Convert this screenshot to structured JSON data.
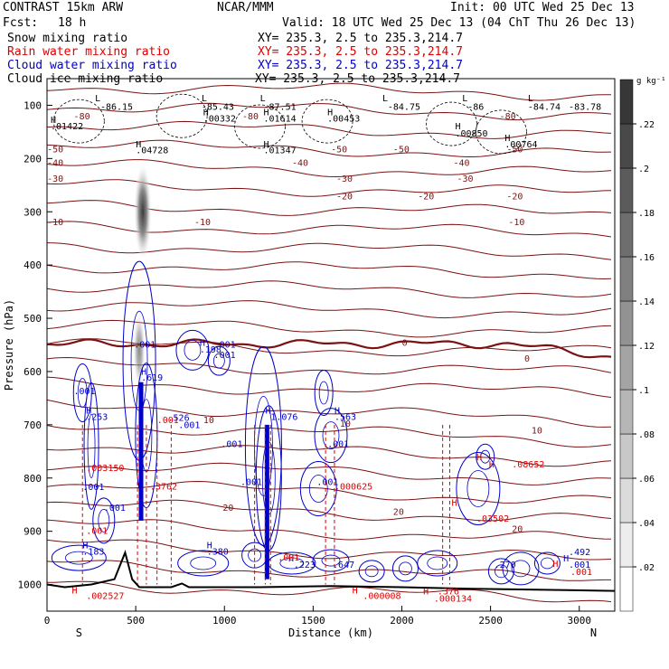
{
  "header": {
    "model": "CONTRAST 15km ARW",
    "org": "NCAR/MMM",
    "init": "Init: 00 UTC Wed 25 Dec 13",
    "fcst_label": "Fcst:",
    "fcst_value": "18 h",
    "valid": "Valid: 18 UTC Wed 25 Dec 13 (04 ChT Thu 26 Dec 13)",
    "colors": {
      "black": "#000000",
      "red": "#dd0000",
      "blue": "#0000cc",
      "brown": "#7b1212"
    },
    "fields": [
      {
        "name": "Snow mixing ratio",
        "xy": "XY= 235.3,  2.5 to 235.3,214.7",
        "color": "#000000"
      },
      {
        "name": "Rain water mixing ratio",
        "xy": "XY= 235.3,  2.5 to 235.3,214.7",
        "color": "#dd0000"
      },
      {
        "name": "Cloud water mixing ratio",
        "xy": "XY= 235.3,  2.5 to 235.3,214.7",
        "color": "#0000cc"
      },
      {
        "name": "Cloud ice mixing ratio",
        "xy": "XY= 235.3,  2.5 to 235.3,214.7",
        "color": "#000000"
      }
    ]
  },
  "chart_data": {
    "type": "cross-section",
    "xlabel": "Distance (km)",
    "ylabel": "Pressure (hPa)",
    "xlim": [
      0,
      3200
    ],
    "ylim": [
      1050,
      50
    ],
    "x_ticks": [
      0,
      500,
      1000,
      1500,
      2000,
      2500,
      3000
    ],
    "y_ticks": [
      100,
      200,
      300,
      400,
      500,
      600,
      700,
      800,
      900,
      1000
    ],
    "endpoint_labels": {
      "left": "S",
      "right": "N"
    },
    "colorbar": {
      "unit": "g kg⁻¹",
      "ticks": [
        ".02",
        ".04",
        ".06",
        ".08",
        ".1",
        ".12",
        ".14",
        ".16",
        ".18",
        ".2",
        ".22"
      ],
      "range": [
        0,
        0.24
      ]
    },
    "temperature_contours": [
      {
        "label": "-80",
        "p": 120
      },
      {
        "label": "-50",
        "p": 183
      },
      {
        "label": "-40",
        "p": 208
      },
      {
        "label": "-30",
        "p": 238
      },
      {
        "label": "-20",
        "p": 270
      },
      {
        "label": "-10",
        "p": 318
      },
      {
        "label": "0",
        "p": 548
      },
      {
        "label": "10",
        "p": 690
      },
      {
        "label": "20",
        "p": 840
      }
    ],
    "temperature_label_positions": [
      {
        "label": "-80",
        "x": 120,
        "p": 120
      },
      {
        "label": "-80",
        "x": 1070,
        "p": 120
      },
      {
        "label": "-80",
        "x": 2520,
        "p": 120
      },
      {
        "label": "-50",
        "x": -30,
        "p": 182
      },
      {
        "label": "-50",
        "x": 1570,
        "p": 182
      },
      {
        "label": "-50",
        "x": 1920,
        "p": 182
      },
      {
        "label": "-50",
        "x": 2560,
        "p": 182
      },
      {
        "label": "-40",
        "x": -30,
        "p": 207
      },
      {
        "label": "-40",
        "x": 1350,
        "p": 207
      },
      {
        "label": "-40",
        "x": 2260,
        "p": 207
      },
      {
        "label": "-30",
        "x": -30,
        "p": 237
      },
      {
        "label": "-30",
        "x": 1600,
        "p": 237
      },
      {
        "label": "-30",
        "x": 2280,
        "p": 237
      },
      {
        "label": "-20",
        "x": 1600,
        "p": 270
      },
      {
        "label": "-20",
        "x": 2060,
        "p": 270
      },
      {
        "label": "-20",
        "x": 2560,
        "p": 270
      },
      {
        "label": "-10",
        "x": -30,
        "p": 318
      },
      {
        "label": "-10",
        "x": 800,
        "p": 318
      },
      {
        "label": "-10",
        "x": 2570,
        "p": 318
      },
      {
        "label": "0",
        "x": 1970,
        "p": 545
      },
      {
        "label": "0",
        "x": 2660,
        "p": 575
      },
      {
        "label": "10",
        "x": 850,
        "p": 690
      },
      {
        "label": "10",
        "x": 1620,
        "p": 697
      },
      {
        "label": "10",
        "x": 2700,
        "p": 710
      },
      {
        "label": "20",
        "x": 960,
        "p": 855
      },
      {
        "label": "20",
        "x": 1920,
        "p": 862
      },
      {
        "label": "20",
        "x": 2590,
        "p": 895
      }
    ],
    "cloud_ice_extrema": [
      {
        "label": "L",
        "x": 250,
        "p": 86
      },
      {
        "label": "-86.15",
        "x": 280,
        "p": 102
      },
      {
        "label": "L",
        "x": 850,
        "p": 86
      },
      {
        "label": "-85.43",
        "x": 850,
        "p": 102
      },
      {
        "label": "H",
        "x": 860,
        "p": 112
      },
      {
        "label": ".00332",
        "x": 860,
        "p": 124
      },
      {
        "label": "L",
        "x": 1180,
        "p": 86
      },
      {
        "label": "-87.51",
        "x": 1200,
        "p": 102
      },
      {
        "label": "H",
        "x": 1200,
        "p": 112
      },
      {
        "label": ".01614",
        "x": 1200,
        "p": 124
      },
      {
        "label": "H",
        "x": 1560,
        "p": 112
      },
      {
        "label": ".00453",
        "x": 1560,
        "p": 124
      },
      {
        "label": "L",
        "x": 1870,
        "p": 86
      },
      {
        "label": "-84.75",
        "x": 1900,
        "p": 102
      },
      {
        "label": "L",
        "x": 2320,
        "p": 86
      },
      {
        "label": "-86",
        "x": 2350,
        "p": 102
      },
      {
        "label": "L",
        "x": 2690,
        "p": 86
      },
      {
        "label": "-84.74",
        "x": 2690,
        "p": 102
      },
      {
        "label": "-83.78",
        "x": 2920,
        "p": 102
      },
      {
        "label": "H",
        "x": 0,
        "p": 126
      },
      {
        "label": ".01422",
        "x": 0,
        "p": 138
      },
      {
        "label": "H",
        "x": 2280,
        "p": 138
      },
      {
        "label": ".00850",
        "x": 2280,
        "p": 152
      },
      {
        "label": "H",
        "x": 2560,
        "p": 160
      },
      {
        "label": ".00764",
        "x": 2560,
        "p": 172
      },
      {
        "label": "H",
        "x": 480,
        "p": 172
      },
      {
        "label": ".04728",
        "x": 480,
        "p": 183
      },
      {
        "label": "H",
        "x": 1200,
        "p": 172
      },
      {
        "label": ".01347",
        "x": 1200,
        "p": 183
      }
    ],
    "cloud_water_extrema": [
      {
        "label": ".001",
        "x": 470,
        "p": 548
      },
      {
        "label": "H",
        "x": 840,
        "p": 545
      },
      {
        "label": ".198",
        "x": 840,
        "p": 558
      },
      {
        "label": ".001",
        "x": 920,
        "p": 548
      },
      {
        "label": ".001",
        "x": 920,
        "p": 568
      },
      {
        "label": "H",
        "x": 510,
        "p": 599
      },
      {
        "label": ".619",
        "x": 510,
        "p": 610
      },
      {
        "label": ".001",
        "x": 130,
        "p": 636
      },
      {
        "label": "H",
        "x": 200,
        "p": 672
      },
      {
        "label": ".253",
        "x": 200,
        "p": 684
      },
      {
        "label": ".526",
        "x": 660,
        "p": 686
      },
      {
        "label": ".001",
        "x": 720,
        "p": 699
      },
      {
        "label": ".001",
        "x": 960,
        "p": 735
      },
      {
        "label": "H",
        "x": 1210,
        "p": 672
      },
      {
        "label": "1.076",
        "x": 1240,
        "p": 684
      },
      {
        "label": "H",
        "x": 1600,
        "p": 672
      },
      {
        "label": ".563",
        "x": 1600,
        "p": 684
      },
      {
        "label": ".001",
        "x": 1560,
        "p": 735
      },
      {
        "label": ".001",
        "x": 1070,
        "p": 806
      },
      {
        "label": ".001",
        "x": 1500,
        "p": 806
      },
      {
        "label": ".001",
        "x": 180,
        "p": 816
      },
      {
        "label": ".001",
        "x": 300,
        "p": 855
      },
      {
        "label": "H",
        "x": 180,
        "p": 925
      },
      {
        "label": ".183",
        "x": 180,
        "p": 937
      },
      {
        "label": "H",
        "x": 880,
        "p": 925
      },
      {
        "label": ".380",
        "x": 880,
        "p": 937
      },
      {
        "label": "H",
        "x": 1340,
        "p": 950
      },
      {
        "label": ".223",
        "x": 1370,
        "p": 962
      },
      {
        "label": ".647",
        "x": 1590,
        "p": 962
      },
      {
        "label": ".270",
        "x": 2500,
        "p": 962
      },
      {
        "label": "H",
        "x": 2890,
        "p": 950
      },
      {
        "label": ".492",
        "x": 2920,
        "p": 938
      },
      {
        "label": ".001",
        "x": 2920,
        "p": 962
      }
    ],
    "rain_extrema": [
      {
        "label": ".001",
        "x": 600,
        "p": 690
      },
      {
        "label": ".003150",
        "x": 200,
        "p": 780
      },
      {
        "label": ".3762",
        "x": 560,
        "p": 815
      },
      {
        "label": ".000625",
        "x": 1600,
        "p": 815
      },
      {
        "label": "H",
        "x": 2400,
        "p": 760
      },
      {
        "label": "H",
        "x": 2470,
        "p": 773
      },
      {
        "label": ".08652",
        "x": 2600,
        "p": 773
      },
      {
        "label": "H",
        "x": 2260,
        "p": 845
      },
      {
        "label": ".03502",
        "x": 2400,
        "p": 875
      },
      {
        "label": ".001",
        "x": 200,
        "p": 898
      },
      {
        "label": ".001",
        "x": 1280,
        "p": 948
      },
      {
        "label": "H",
        "x": 120,
        "p": 1010
      },
      {
        "label": ".002527",
        "x": 200,
        "p": 1020
      },
      {
        "label": "H",
        "x": 1700,
        "p": 1010
      },
      {
        "label": ".000008",
        "x": 1760,
        "p": 1020
      },
      {
        "label": "H",
        "x": 2100,
        "p": 1012
      },
      {
        "label": ".000134",
        "x": 2160,
        "p": 1025
      },
      {
        "label": ".376",
        "x": 2180,
        "p": 1012
      },
      {
        "label": "H",
        "x": 2830,
        "p": 960
      },
      {
        "label": ".001",
        "x": 2930,
        "p": 975
      }
    ]
  }
}
